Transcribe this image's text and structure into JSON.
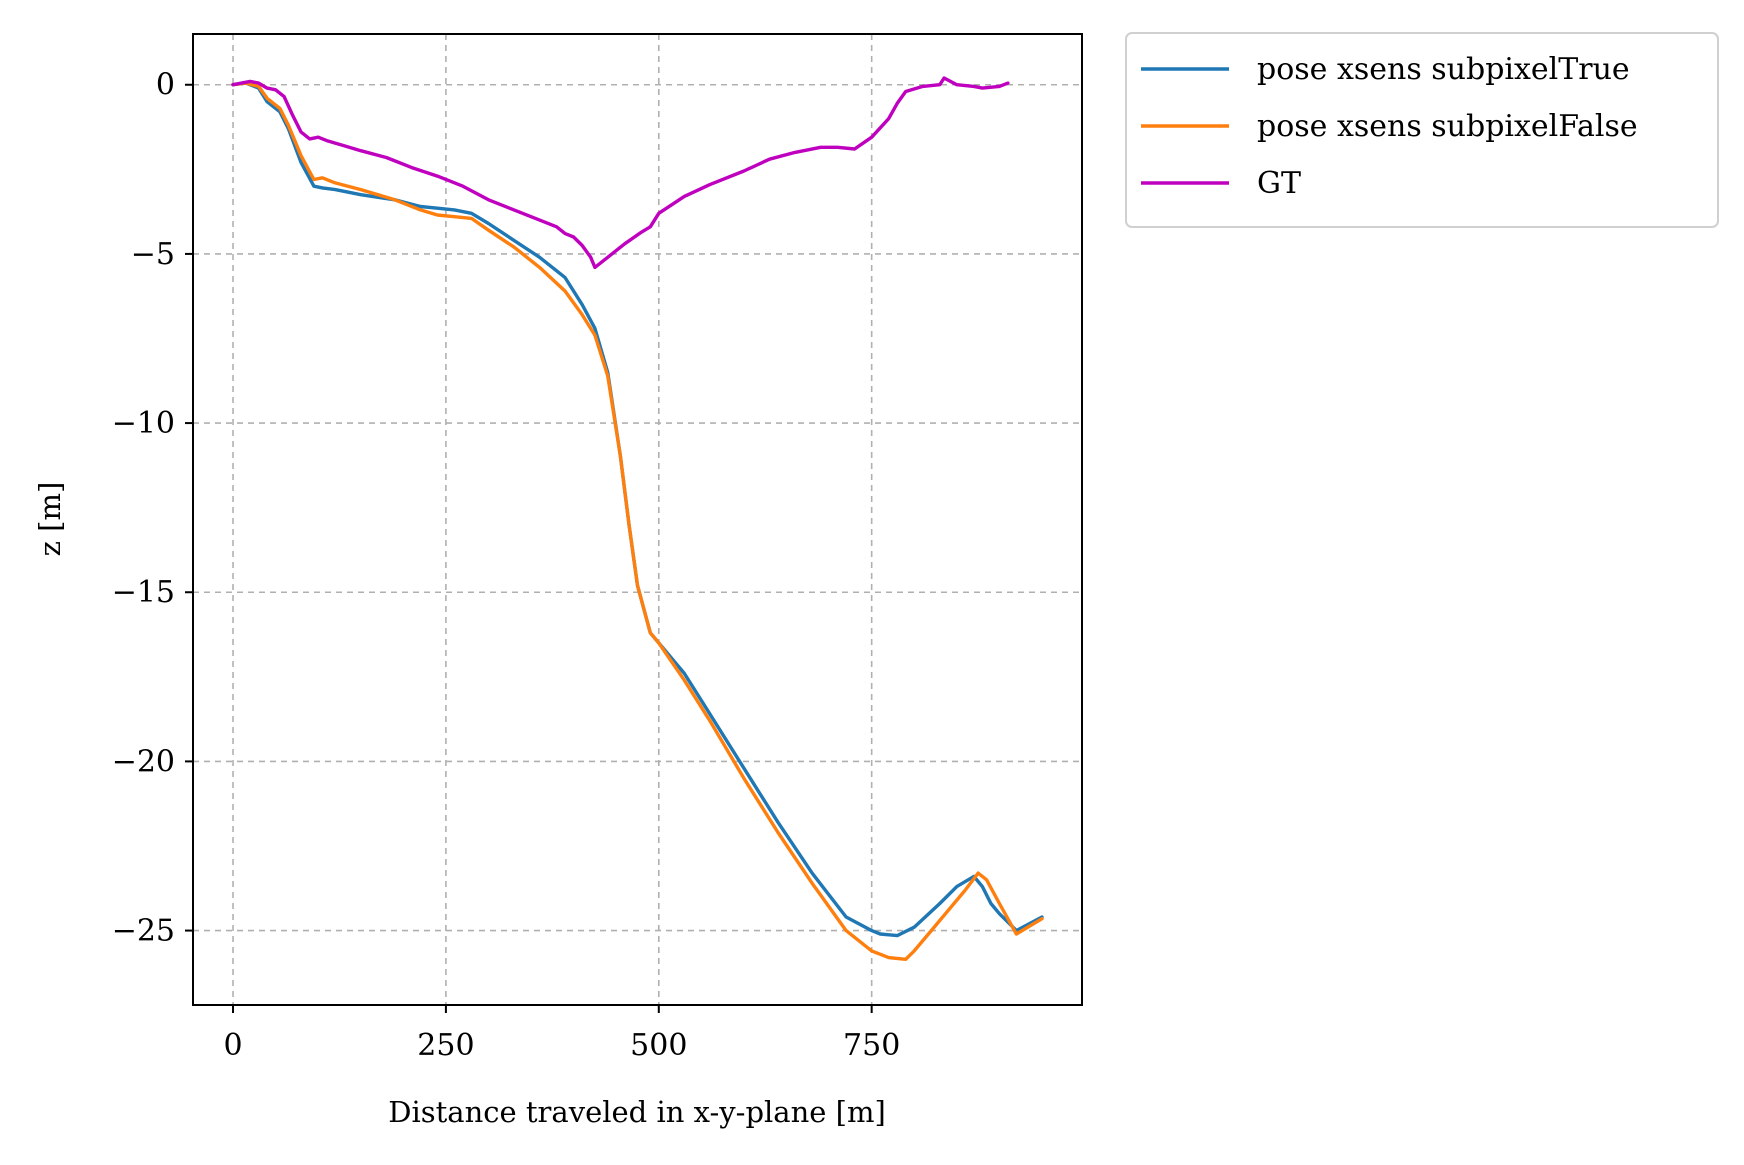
{
  "chart_data": {
    "type": "line",
    "title": "",
    "xlabel": "Distance traveled in x-y-plane [m]",
    "ylabel": "z [m]",
    "xlim": [
      -47,
      997
    ],
    "ylim": [
      -27.2,
      1.5
    ],
    "xticks": [
      0,
      250,
      500,
      750
    ],
    "xtick_labels": [
      "0",
      "250",
      "500",
      "750"
    ],
    "yticks": [
      0,
      -5,
      -10,
      -15,
      -20,
      -25
    ],
    "ytick_labels": [
      "0",
      "−5",
      "−10",
      "−15",
      "−20",
      "−25"
    ],
    "grid": true,
    "legend_position": "outside-top-right",
    "series": [
      {
        "name": "pose xsens subpixelTrue",
        "color": "#1f77b4",
        "x": [
          0,
          15,
          30,
          40,
          55,
          65,
          80,
          95,
          105,
          120,
          150,
          190,
          220,
          240,
          260,
          280,
          300,
          330,
          360,
          390,
          410,
          425,
          440,
          455,
          465,
          475,
          490,
          500,
          530,
          560,
          600,
          640,
          680,
          720,
          750,
          760,
          780,
          800,
          830,
          850,
          870,
          880,
          890,
          900,
          920,
          950
        ],
        "values": [
          0,
          0.05,
          -0.1,
          -0.5,
          -0.8,
          -1.3,
          -2.3,
          -3.0,
          -3.05,
          -3.1,
          -3.25,
          -3.4,
          -3.6,
          -3.65,
          -3.7,
          -3.8,
          -4.1,
          -4.6,
          -5.1,
          -5.7,
          -6.5,
          -7.2,
          -8.5,
          -11.0,
          -13.0,
          -14.8,
          -16.2,
          -16.5,
          -17.4,
          -18.6,
          -20.2,
          -21.8,
          -23.3,
          -24.6,
          -25.0,
          -25.1,
          -25.15,
          -24.9,
          -24.2,
          -23.7,
          -23.4,
          -23.7,
          -24.2,
          -24.5,
          -25.0,
          -24.6
        ]
      },
      {
        "name": "pose xsens subpixelFalse",
        "color": "#ff7f0e",
        "x": [
          0,
          15,
          30,
          40,
          55,
          65,
          80,
          95,
          105,
          120,
          150,
          190,
          220,
          240,
          260,
          280,
          300,
          330,
          360,
          390,
          410,
          425,
          440,
          455,
          465,
          475,
          490,
          500,
          530,
          560,
          600,
          640,
          680,
          720,
          750,
          770,
          790,
          800,
          820,
          840,
          860,
          875,
          885,
          900,
          920,
          950
        ],
        "values": [
          0,
          0.05,
          -0.05,
          -0.4,
          -0.7,
          -1.2,
          -2.1,
          -2.8,
          -2.75,
          -2.9,
          -3.1,
          -3.4,
          -3.7,
          -3.85,
          -3.9,
          -3.95,
          -4.3,
          -4.8,
          -5.4,
          -6.1,
          -6.8,
          -7.4,
          -8.6,
          -11.0,
          -13.0,
          -14.8,
          -16.2,
          -16.5,
          -17.6,
          -18.8,
          -20.5,
          -22.1,
          -23.6,
          -25.0,
          -25.6,
          -25.8,
          -25.85,
          -25.6,
          -25.0,
          -24.4,
          -23.8,
          -23.3,
          -23.5,
          -24.2,
          -25.1,
          -24.65
        ]
      },
      {
        "name": "GT",
        "color": "#bf00bf",
        "x": [
          0,
          10,
          20,
          30,
          40,
          50,
          60,
          70,
          80,
          90,
          100,
          110,
          130,
          150,
          180,
          210,
          240,
          270,
          300,
          330,
          360,
          380,
          390,
          400,
          410,
          420,
          425,
          440,
          460,
          480,
          490,
          500,
          530,
          560,
          600,
          630,
          660,
          690,
          710,
          730,
          750,
          770,
          780,
          790,
          810,
          830,
          835,
          850,
          870,
          880,
          900,
          910
        ],
        "values": [
          0,
          0.05,
          0.1,
          0.05,
          -0.1,
          -0.15,
          -0.35,
          -0.9,
          -1.4,
          -1.6,
          -1.55,
          -1.65,
          -1.8,
          -1.95,
          -2.15,
          -2.45,
          -2.7,
          -3.0,
          -3.4,
          -3.7,
          -4.0,
          -4.2,
          -4.4,
          -4.5,
          -4.75,
          -5.1,
          -5.4,
          -5.1,
          -4.7,
          -4.35,
          -4.2,
          -3.8,
          -3.3,
          -2.95,
          -2.55,
          -2.2,
          -2.0,
          -1.85,
          -1.85,
          -1.9,
          -1.55,
          -1.0,
          -0.55,
          -0.2,
          -0.05,
          0.0,
          0.2,
          0.0,
          -0.05,
          -0.1,
          -0.05,
          0.05
        ]
      }
    ]
  }
}
